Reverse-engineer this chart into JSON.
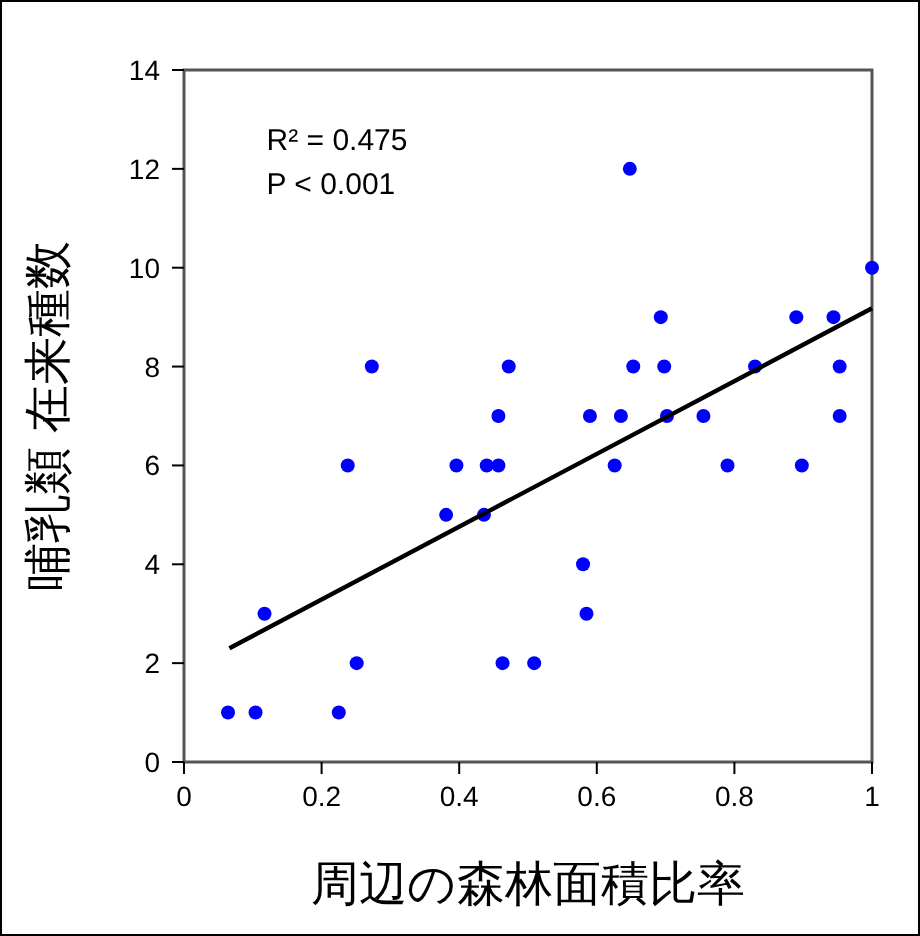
{
  "chart_data": {
    "type": "scatter",
    "xlabel": "周辺の森林面積比率",
    "ylabel": "哺乳類 在来種数",
    "annotations": [
      "R² = 0.475",
      "P < 0.001"
    ],
    "xlim": [
      0,
      1
    ],
    "ylim": [
      0,
      14
    ],
    "xticks": [
      0,
      0.2,
      0.4,
      0.6,
      0.8,
      1
    ],
    "yticks": [
      0,
      2,
      4,
      6,
      8,
      10,
      12,
      14
    ],
    "grid": false,
    "series": [
      {
        "marker": "circle",
        "color": "#0000ff",
        "x": [
          0.064,
          0.104,
          0.117,
          0.225,
          0.238,
          0.251,
          0.273,
          0.381,
          0.396,
          0.436,
          0.44,
          0.457,
          0.457,
          0.463,
          0.472,
          0.509,
          0.58,
          0.585,
          0.59,
          0.626,
          0.635,
          0.648,
          0.653,
          0.693,
          0.698,
          0.702,
          0.755,
          0.79,
          0.83,
          0.89,
          0.898,
          0.944,
          0.953,
          0.953,
          1.0
        ],
        "values": [
          1,
          1,
          3,
          1,
          6,
          2,
          8,
          5,
          6,
          5,
          6,
          6,
          7,
          2,
          8,
          2,
          4,
          3,
          7,
          6,
          7,
          12,
          8,
          9,
          8,
          7,
          7,
          6,
          8,
          9,
          6,
          9,
          8,
          7,
          10
        ]
      },
      {
        "type": "line",
        "color": "#000000",
        "x": [
          0.066,
          1.0
        ],
        "values": [
          2.3,
          9.18
        ]
      }
    ]
  }
}
